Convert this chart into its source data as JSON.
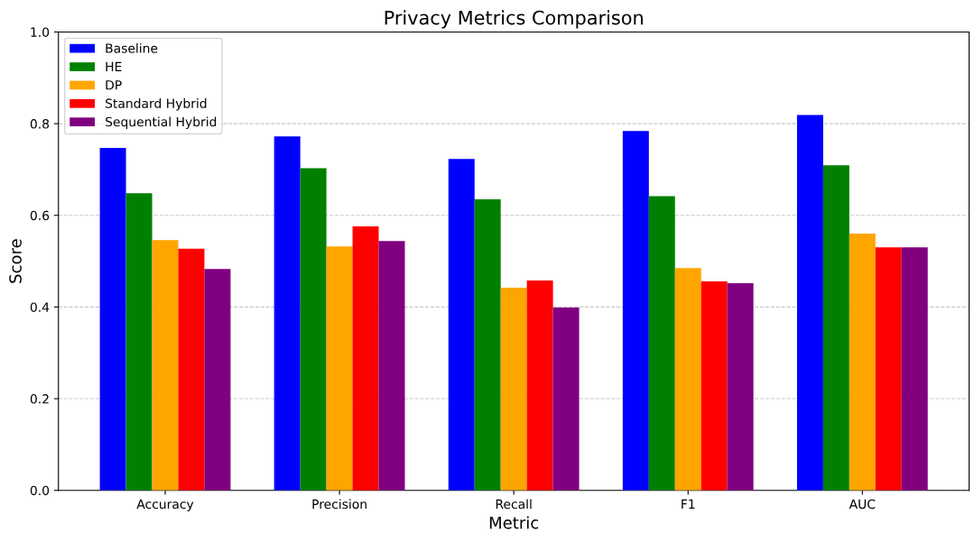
{
  "chart_data": {
    "type": "bar",
    "title": "Privacy Metrics Comparison",
    "xlabel": "Metric",
    "ylabel": "Score",
    "categories": [
      "Accuracy",
      "Precision",
      "Recall",
      "F1",
      "AUC"
    ],
    "series": [
      {
        "name": "Baseline",
        "color": "#0000ff",
        "values": [
          0.747,
          0.772,
          0.723,
          0.784,
          0.819
        ]
      },
      {
        "name": "HE",
        "color": "#008000",
        "values": [
          0.648,
          0.703,
          0.635,
          0.642,
          0.709
        ]
      },
      {
        "name": "DP",
        "color": "#ffa500",
        "values": [
          0.546,
          0.532,
          0.442,
          0.485,
          0.56
        ]
      },
      {
        "name": "Standard Hybrid",
        "color": "#ff0000",
        "values": [
          0.527,
          0.576,
          0.458,
          0.456,
          0.53
        ]
      },
      {
        "name": "Sequential Hybrid",
        "color": "#800080",
        "values": [
          0.483,
          0.544,
          0.399,
          0.452,
          0.53
        ]
      }
    ],
    "ylim": [
      0,
      1.0
    ],
    "yticks": [
      {
        "value": 0,
        "label": "0.0"
      },
      0.2,
      0.4,
      0.6,
      0.8,
      {
        "value": 1.0,
        "label": "1.0"
      }
    ],
    "grid": "y",
    "legend": "top left"
  }
}
